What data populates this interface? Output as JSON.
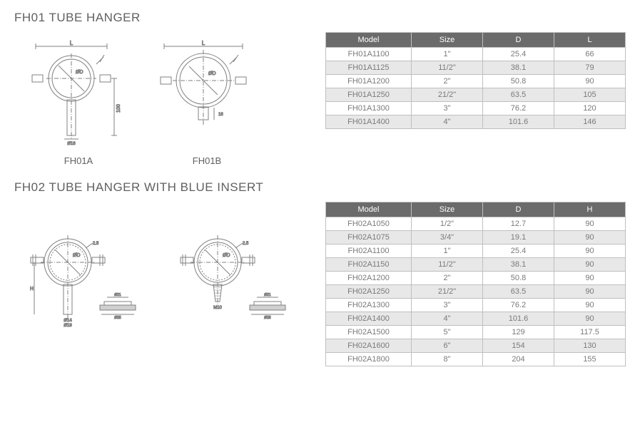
{
  "section1": {
    "title": "FH01 TUBE HANGER",
    "diagramA": {
      "label": "FH01A",
      "dim_L": "L",
      "dim_D": "ØD",
      "dim_100": "100",
      "dim_O16": "Ø16",
      "dim_O19": "Ø19"
    },
    "diagramB": {
      "label": "FH01B",
      "dim_L": "L",
      "dim_D": "ØD",
      "dim_16": "16"
    },
    "table": {
      "columns": [
        "Model",
        "Size",
        "D",
        "L"
      ],
      "rows": [
        [
          "FH01A1100",
          "1\"",
          "25.4",
          "66"
        ],
        [
          "FH01A1125",
          "11/2\"",
          "38.1",
          "79"
        ],
        [
          "FH01A1200",
          "2\"",
          "50.8",
          "90"
        ],
        [
          "FH01A1250",
          "21/2\"",
          "63.5",
          "105"
        ],
        [
          "FH01A1300",
          "3\"",
          "76.2",
          "120"
        ],
        [
          "FH01A1400",
          "4\"",
          "101.6",
          "146"
        ]
      ]
    }
  },
  "section2": {
    "title": "FH02 TUBE HANGER WITH BLUE INSERT",
    "diagramA": {
      "dim_D": "ØD",
      "dim_25": "2.5",
      "dim_H": "H",
      "dim_O14": "Ø14",
      "dim_O19": "Ø19",
      "dim_O21": "Ø21",
      "dim_O25": "Ø25"
    },
    "diagramB": {
      "dim_D": "ØD",
      "dim_25": "2.5",
      "dim_M10": "M10",
      "dim_O21": "Ø21",
      "dim_O25": "Ø25"
    },
    "table": {
      "columns": [
        "Model",
        "Size",
        "D",
        "H"
      ],
      "rows": [
        [
          "FH02A1050",
          "1/2\"",
          "12.7",
          "90"
        ],
        [
          "FH02A1075",
          "3/4\"",
          "19.1",
          "90"
        ],
        [
          "FH02A1100",
          "1\"",
          "25.4",
          "90"
        ],
        [
          "FH02A1150",
          "11/2\"",
          "38.1",
          "90"
        ],
        [
          "FH02A1200",
          "2\"",
          "50.8",
          "90"
        ],
        [
          "FH02A1250",
          "21/2\"",
          "63.5",
          "90"
        ],
        [
          "FH02A1300",
          "3\"",
          "76.2",
          "90"
        ],
        [
          "FH02A1400",
          "4\"",
          "101.6",
          "90"
        ],
        [
          "FH02A1500",
          "5\"",
          "129",
          "117.5"
        ],
        [
          "FH02A1600",
          "6\"",
          "154",
          "130"
        ],
        [
          "FH02A1800",
          "8\"",
          "204",
          "155"
        ]
      ]
    }
  },
  "style": {
    "header_bg": "#6b6b6b",
    "header_fg": "#ffffff",
    "row_alt_bg": "#e8e8e8",
    "border": "#bfbfbf",
    "text": "#7a7a7a",
    "title_color": "#606060",
    "stroke": "#808080"
  }
}
